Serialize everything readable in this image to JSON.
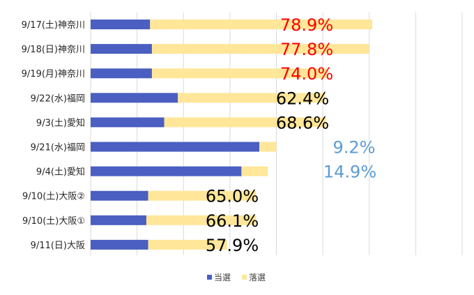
{
  "chart_data": {
    "type": "bar",
    "orientation": "horizontal",
    "stacked": true,
    "title": "",
    "xlabel": "",
    "ylabel": "",
    "xlim": [
      0,
      100
    ],
    "grid": true,
    "legend_position": "bottom",
    "categories": [
      "9/17(土)神奈川",
      "9/18(日)神奈川",
      "9/19(月)神奈川",
      "9/22(水)福岡",
      "9/3(土)愛知",
      "9/21(水)福岡",
      "9/4(土)愛知",
      "9/10(土)大阪②",
      "9/10(土)大阪①",
      "9/11(日)大阪"
    ],
    "series": [
      {
        "name": "当選",
        "color": "#4A5FC1",
        "values": [
          16.0,
          16.5,
          16.5,
          23.5,
          19.8,
          45.4,
          40.6,
          15.5,
          15.0,
          15.5
        ]
      },
      {
        "name": "落選",
        "color": "#FFE699",
        "values": [
          59.8,
          58.4,
          47.2,
          39.5,
          43.6,
          4.6,
          7.1,
          29.0,
          29.5,
          21.2
        ]
      }
    ],
    "annotations": [
      {
        "text": "78.9%",
        "color": "#FF0000"
      },
      {
        "text": "77.8%",
        "color": "#FF0000"
      },
      {
        "text": "74.0%",
        "color": "#FF0000"
      },
      {
        "text": "62.4%",
        "color": "#000000"
      },
      {
        "text": "68.6%",
        "color": "#000000"
      },
      {
        "text": "9.2%",
        "color": "#5B9BD5"
      },
      {
        "text": "14.9%",
        "color": "#5B9BD5"
      },
      {
        "text": "65.0%",
        "color": "#000000"
      },
      {
        "text": "66.1%",
        "color": "#000000"
      },
      {
        "text": "57.9%",
        "color": "#000000"
      }
    ],
    "gridline_color": "#D9D9D9"
  }
}
